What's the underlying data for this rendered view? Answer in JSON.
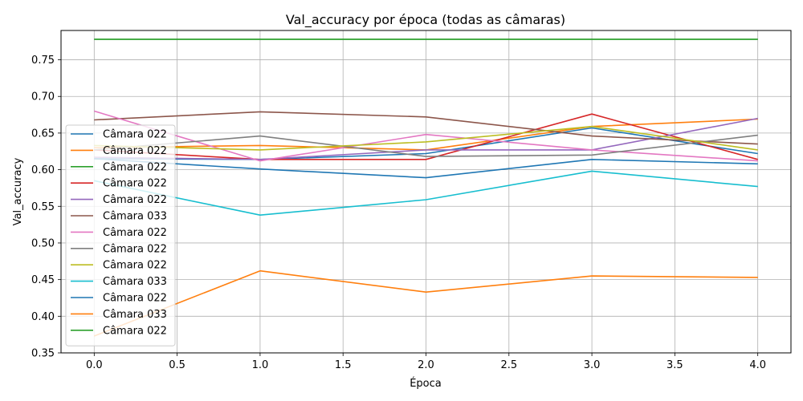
{
  "chart_data": {
    "type": "line",
    "title": "Val_accuracy por época (todas as câmaras)",
    "xlabel": "Época",
    "ylabel": "Val_accuracy",
    "xlim": [
      -0.2,
      4.2
    ],
    "ylim": [
      0.35,
      0.79
    ],
    "xticks": [
      0.0,
      0.5,
      1.0,
      1.5,
      2.0,
      2.5,
      3.0,
      3.5,
      4.0
    ],
    "xtick_labels": [
      "0.0",
      "0.5",
      "1.0",
      "1.5",
      "2.0",
      "2.5",
      "3.0",
      "3.5",
      "4.0"
    ],
    "yticks": [
      0.35,
      0.4,
      0.45,
      0.5,
      0.55,
      0.6,
      0.65,
      0.7,
      0.75
    ],
    "ytick_labels": [
      "0.35",
      "0.40",
      "0.45",
      "0.50",
      "0.55",
      "0.60",
      "0.65",
      "0.70",
      "0.75"
    ],
    "grid": true,
    "legend_position": "center-left",
    "x": [
      0,
      1,
      2,
      3,
      4
    ],
    "series": [
      {
        "name": "Câmara 022",
        "color": "#1f77b4",
        "values": [
          0.615,
          0.614,
          0.622,
          0.657,
          0.622
        ]
      },
      {
        "name": "Câmara 022",
        "color": "#ff7f0e",
        "values": [
          0.63,
          0.633,
          0.627,
          0.659,
          0.669
        ]
      },
      {
        "name": "Câmara 022",
        "color": "#2ca02c",
        "values": [
          0.778,
          0.778,
          0.778,
          0.778,
          0.778
        ]
      },
      {
        "name": "Câmara 022",
        "color": "#d62728",
        "values": [
          0.627,
          0.614,
          0.614,
          0.676,
          0.614
        ]
      },
      {
        "name": "Câmara 022",
        "color": "#9467bd",
        "values": [
          0.617,
          0.614,
          0.627,
          0.627,
          0.67
        ]
      },
      {
        "name": "Câmara 033",
        "color": "#8c564b",
        "values": [
          0.668,
          0.679,
          0.672,
          0.646,
          0.635
        ]
      },
      {
        "name": "Câmara 022",
        "color": "#e377c2",
        "values": [
          0.68,
          0.612,
          0.648,
          0.627,
          0.612
        ]
      },
      {
        "name": "Câmara 022",
        "color": "#7f7f7f",
        "values": [
          0.627,
          0.646,
          0.618,
          0.62,
          0.647
        ]
      },
      {
        "name": "Câmara 022",
        "color": "#bcbd22",
        "values": [
          0.633,
          0.627,
          0.638,
          0.659,
          0.627
        ]
      },
      {
        "name": "Câmara 033",
        "color": "#17becf",
        "values": [
          0.585,
          0.538,
          0.559,
          0.598,
          0.577
        ]
      },
      {
        "name": "Câmara 022",
        "color": "#1f77b4",
        "values": [
          0.615,
          0.601,
          0.589,
          0.614,
          0.608
        ]
      },
      {
        "name": "Câmara 033",
        "color": "#ff7f0e",
        "values": [
          0.373,
          0.462,
          0.433,
          0.455,
          0.453
        ]
      },
      {
        "name": "Câmara 022",
        "color": "#2ca02c",
        "values": [
          0.778,
          0.778,
          0.778,
          0.778,
          0.778
        ]
      }
    ]
  }
}
